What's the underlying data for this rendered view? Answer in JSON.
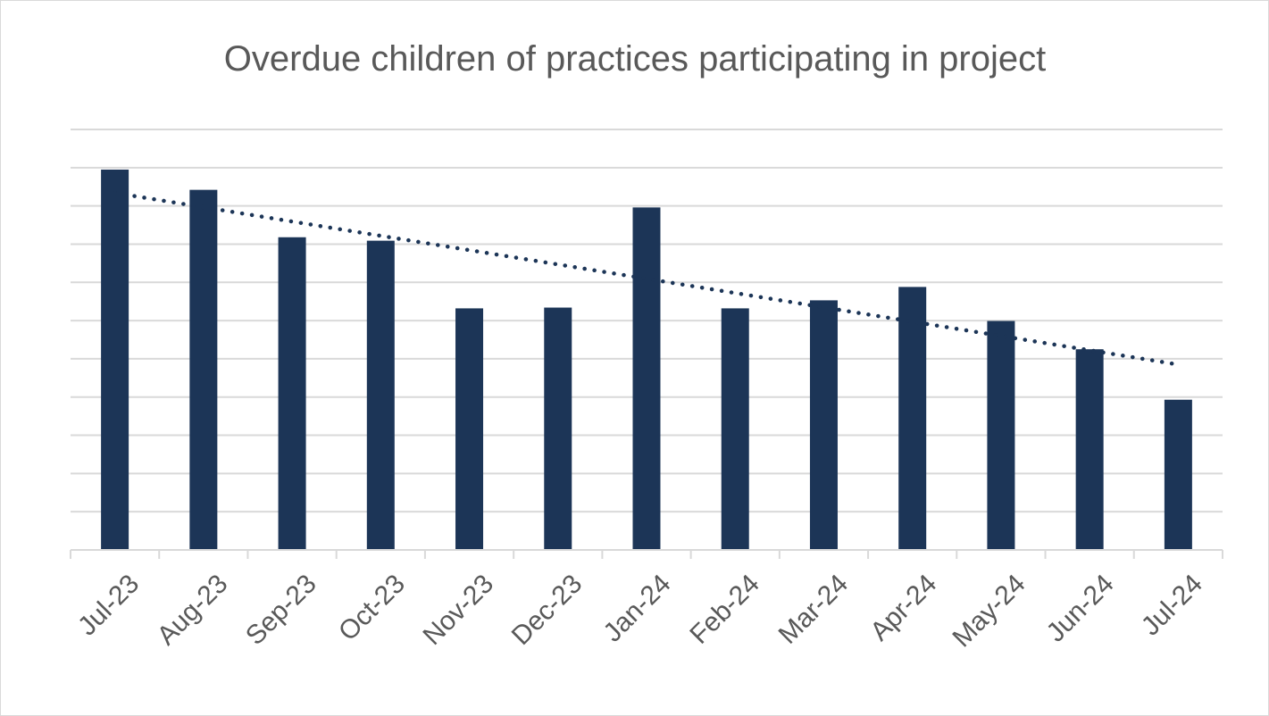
{
  "chart_data": {
    "type": "bar",
    "title": "Overdue children of practices participating in project",
    "xlabel": "",
    "ylabel": "",
    "categories": [
      "Jul-23",
      "Aug-23",
      "Sep-23",
      "Oct-23",
      "Nov-23",
      "Dec-23",
      "Jan-24",
      "Feb-24",
      "Mar-24",
      "Apr-24",
      "May-24",
      "Jun-24",
      "Jul-24"
    ],
    "series": [
      {
        "values": [
          9.95,
          9.42,
          8.18,
          8.09,
          6.32,
          6.34,
          8.96,
          6.32,
          6.53,
          6.88,
          5.99,
          5.25,
          3.93
        ]
      }
    ],
    "trendline": {
      "type": "linear",
      "style": "dotted",
      "start": 9.34,
      "end": 4.85
    },
    "ylim": [
      0,
      11
    ],
    "y_tick_labels_shown": false,
    "grid": true,
    "legend": "none",
    "colors": {
      "bar": "#1c3557",
      "trendline": "#1c3557",
      "grid": "#d9d9d9",
      "text": "#595959"
    }
  }
}
